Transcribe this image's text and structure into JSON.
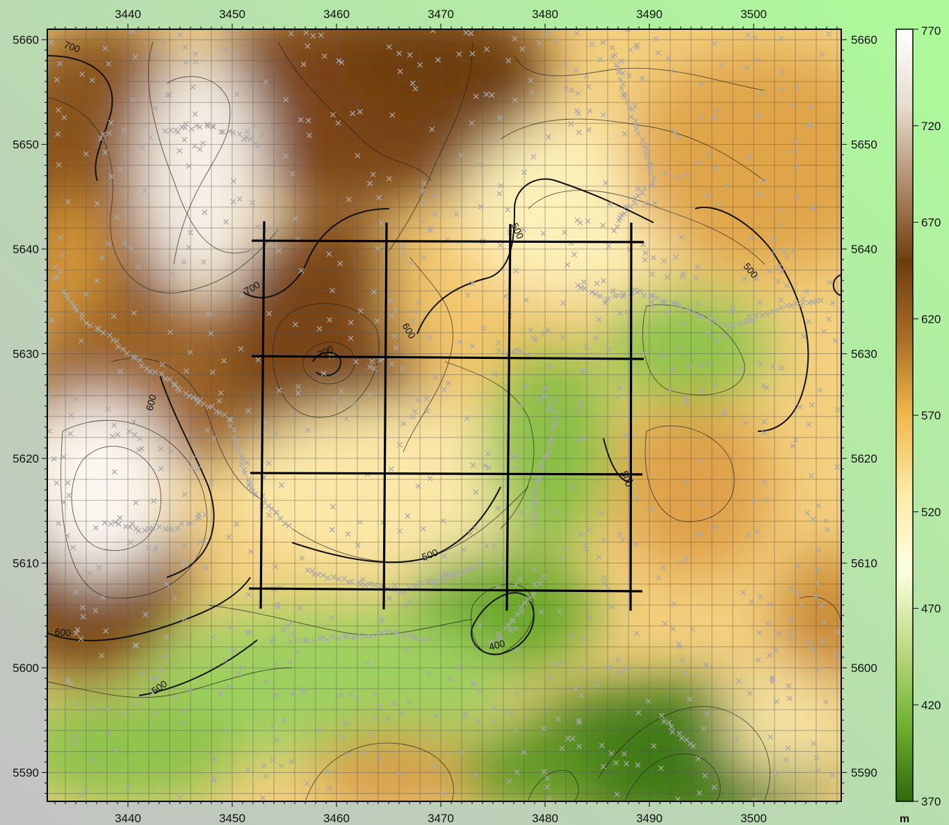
{
  "map": {
    "x_ticks": [
      "3440",
      "3450",
      "3460",
      "3470",
      "3480",
      "3490",
      "3500"
    ],
    "y_ticks": [
      "5660",
      "5650",
      "5640",
      "5630",
      "5620",
      "5610",
      "5600",
      "5590"
    ],
    "contour_labels": [
      {
        "text": "700",
        "name": "contour-label-700-nw"
      },
      {
        "text": "700",
        "name": "contour-label-700-center"
      },
      {
        "text": "700",
        "name": "contour-label-700-peak"
      },
      {
        "text": "600",
        "name": "contour-label-600-center"
      },
      {
        "text": "600",
        "name": "contour-label-600-west"
      },
      {
        "text": "600",
        "name": "contour-label-600-southwest"
      },
      {
        "text": "500",
        "name": "contour-label-500-north"
      },
      {
        "text": "500",
        "name": "contour-label-500-northeast"
      },
      {
        "text": "500",
        "name": "contour-label-500-east"
      },
      {
        "text": "500",
        "name": "contour-label-500-center"
      },
      {
        "text": "500",
        "name": "contour-label-500-southwest"
      },
      {
        "text": "400",
        "name": "contour-label-400-south"
      }
    ]
  },
  "colorbar": {
    "ticks": [
      "770",
      "720",
      "670",
      "620",
      "570",
      "520",
      "470",
      "420",
      "370"
    ],
    "unit": "m",
    "colors": {
      "high": "#ffffff",
      "brown_light": "#c7ab8a",
      "brown_dark": "#6e3d0e",
      "tan": "#b27a35",
      "ochre": "#f0b84c",
      "pale": "#fbefb5",
      "cream": "#ffffe6",
      "green_light": "#bfdb84",
      "green": "#6fb231",
      "green_dark": "#2f6a0a"
    }
  }
}
